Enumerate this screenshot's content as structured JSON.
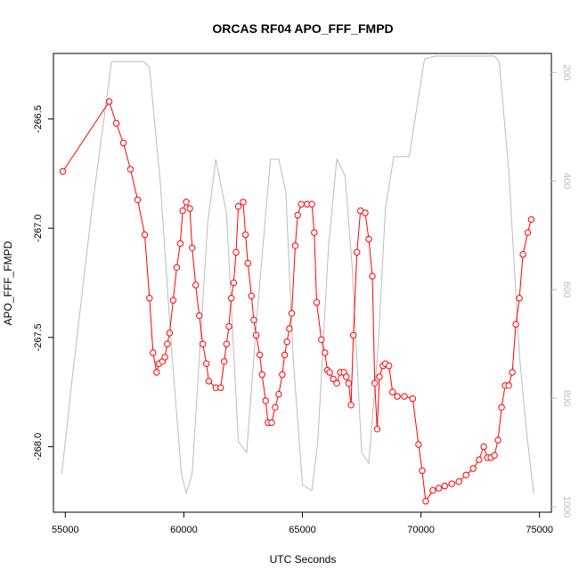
{
  "chart_data": {
    "type": "line",
    "title": "ORCAS RF04 APO_FFF_FMPD",
    "xlabel": "UTC Seconds",
    "ylabel": "APO_FFF_FMPD",
    "xlim": [
      54500,
      75500
    ],
    "ylim": [
      -268.3,
      -266.2
    ],
    "y2lim": [
      1010,
      165
    ],
    "x_ticks": [
      55000,
      60000,
      65000,
      70000,
      75000
    ],
    "x_tick_labels": [
      "55000",
      "60000",
      "65000",
      "70000",
      "75000"
    ],
    "y_ticks": [
      -266.5,
      -267.0,
      -267.5,
      -268.0
    ],
    "y_tick_labels": [
      "-266.5",
      "-267.0",
      "-267.5",
      "-268.0"
    ],
    "y2_ticks": [
      200,
      400,
      600,
      800,
      1000
    ],
    "y2_tick_labels": [
      "200",
      "400",
      "600",
      "800",
      "1000"
    ],
    "grid": false,
    "series": [
      {
        "role": "primary",
        "color": "#ff0000",
        "marker": "open-circle",
        "points": [
          [
            54900,
            -266.74
          ],
          [
            56850,
            -266.42
          ],
          [
            57150,
            -266.52
          ],
          [
            57450,
            -266.61
          ],
          [
            57750,
            -266.73
          ],
          [
            58050,
            -266.87
          ],
          [
            58350,
            -267.03
          ],
          [
            58550,
            -267.32
          ],
          [
            58700,
            -267.57
          ],
          [
            58850,
            -267.66
          ],
          [
            58950,
            -267.62
          ],
          [
            59100,
            -267.61
          ],
          [
            59200,
            -267.59
          ],
          [
            59300,
            -267.53
          ],
          [
            59400,
            -267.48
          ],
          [
            59550,
            -267.33
          ],
          [
            59700,
            -267.18
          ],
          [
            59850,
            -267.07
          ],
          [
            59950,
            -266.92
          ],
          [
            60100,
            -266.88
          ],
          [
            60250,
            -266.91
          ],
          [
            60350,
            -267.09
          ],
          [
            60500,
            -267.26
          ],
          [
            60650,
            -267.4
          ],
          [
            60800,
            -267.53
          ],
          [
            60950,
            -267.62
          ],
          [
            61050,
            -267.7
          ],
          [
            61350,
            -267.73
          ],
          [
            61550,
            -267.73
          ],
          [
            61700,
            -267.61
          ],
          [
            61800,
            -267.53
          ],
          [
            61900,
            -267.45
          ],
          [
            62000,
            -267.32
          ],
          [
            62100,
            -267.25
          ],
          [
            62200,
            -267.11
          ],
          [
            62300,
            -266.9
          ],
          [
            62500,
            -266.88
          ],
          [
            62600,
            -267.03
          ],
          [
            62700,
            -267.16
          ],
          [
            62850,
            -267.31
          ],
          [
            62950,
            -267.42
          ],
          [
            63050,
            -267.49
          ],
          [
            63200,
            -267.58
          ],
          [
            63300,
            -267.67
          ],
          [
            63450,
            -267.79
          ],
          [
            63550,
            -267.89
          ],
          [
            63700,
            -267.89
          ],
          [
            63850,
            -267.82
          ],
          [
            64000,
            -267.76
          ],
          [
            64150,
            -267.67
          ],
          [
            64250,
            -267.58
          ],
          [
            64350,
            -267.52
          ],
          [
            64450,
            -267.46
          ],
          [
            64550,
            -267.39
          ],
          [
            64700,
            -267.08
          ],
          [
            64800,
            -266.94
          ],
          [
            64950,
            -266.89
          ],
          [
            65200,
            -266.89
          ],
          [
            65400,
            -266.89
          ],
          [
            65500,
            -267.02
          ],
          [
            65600,
            -267.34
          ],
          [
            65800,
            -267.51
          ],
          [
            65950,
            -267.57
          ],
          [
            66050,
            -267.65
          ],
          [
            66150,
            -267.66
          ],
          [
            66300,
            -267.69
          ],
          [
            66450,
            -267.71
          ],
          [
            66600,
            -267.66
          ],
          [
            66750,
            -267.66
          ],
          [
            66850,
            -267.68
          ],
          [
            66950,
            -267.71
          ],
          [
            67050,
            -267.81
          ],
          [
            67150,
            -267.49
          ],
          [
            67300,
            -267.11
          ],
          [
            67450,
            -266.92
          ],
          [
            67650,
            -266.93
          ],
          [
            67800,
            -267.05
          ],
          [
            67950,
            -267.22
          ],
          [
            68050,
            -267.71
          ],
          [
            68150,
            -267.92
          ],
          [
            68250,
            -267.68
          ],
          [
            68400,
            -267.63
          ],
          [
            68500,
            -267.62
          ],
          [
            68650,
            -267.63
          ],
          [
            68800,
            -267.75
          ],
          [
            69000,
            -267.77
          ],
          [
            69300,
            -267.77
          ],
          [
            69650,
            -267.78
          ],
          [
            69900,
            -267.99
          ],
          [
            70050,
            -268.11
          ],
          [
            70200,
            -268.25
          ],
          [
            70500,
            -268.2
          ],
          [
            70750,
            -268.19
          ],
          [
            71000,
            -268.18
          ],
          [
            71300,
            -268.17
          ],
          [
            71600,
            -268.16
          ],
          [
            71900,
            -268.13
          ],
          [
            72200,
            -268.1
          ],
          [
            72450,
            -268.06
          ],
          [
            72650,
            -268.0
          ],
          [
            72800,
            -268.05
          ],
          [
            72950,
            -268.05
          ],
          [
            73100,
            -268.04
          ],
          [
            73250,
            -267.97
          ],
          [
            73400,
            -267.82
          ],
          [
            73550,
            -267.72
          ],
          [
            73700,
            -267.72
          ],
          [
            73850,
            -267.66
          ],
          [
            74000,
            -267.44
          ],
          [
            74150,
            -267.32
          ],
          [
            74300,
            -267.12
          ],
          [
            74500,
            -267.02
          ],
          [
            74650,
            -266.96
          ]
        ]
      },
      {
        "role": "secondary-altitude",
        "color": "#bbbbbb",
        "marker": "none",
        "axis": "right",
        "points": [
          [
            54850,
            940
          ],
          [
            55300,
            760
          ],
          [
            56100,
            460
          ],
          [
            56950,
            180
          ],
          [
            57300,
            180
          ],
          [
            58300,
            180
          ],
          [
            58550,
            190
          ],
          [
            59000,
            400
          ],
          [
            59500,
            720
          ],
          [
            59900,
            940
          ],
          [
            60100,
            975
          ],
          [
            60350,
            940
          ],
          [
            61000,
            480
          ],
          [
            61350,
            360
          ],
          [
            61800,
            460
          ],
          [
            62300,
            880
          ],
          [
            62650,
            900
          ],
          [
            63100,
            640
          ],
          [
            63650,
            360
          ],
          [
            64000,
            360
          ],
          [
            64300,
            420
          ],
          [
            64600,
            720
          ],
          [
            65000,
            960
          ],
          [
            65400,
            970
          ],
          [
            65650,
            880
          ],
          [
            66100,
            520
          ],
          [
            66450,
            360
          ],
          [
            66800,
            390
          ],
          [
            67100,
            560
          ],
          [
            67500,
            900
          ],
          [
            67800,
            920
          ],
          [
            68200,
            700
          ],
          [
            68500,
            450
          ],
          [
            68850,
            355
          ],
          [
            69500,
            355
          ],
          [
            70150,
            175
          ],
          [
            70600,
            170
          ],
          [
            72350,
            170
          ],
          [
            73100,
            170
          ],
          [
            73300,
            180
          ],
          [
            73700,
            380
          ],
          [
            74150,
            720
          ],
          [
            74450,
            860
          ],
          [
            74750,
            975
          ]
        ]
      }
    ]
  }
}
